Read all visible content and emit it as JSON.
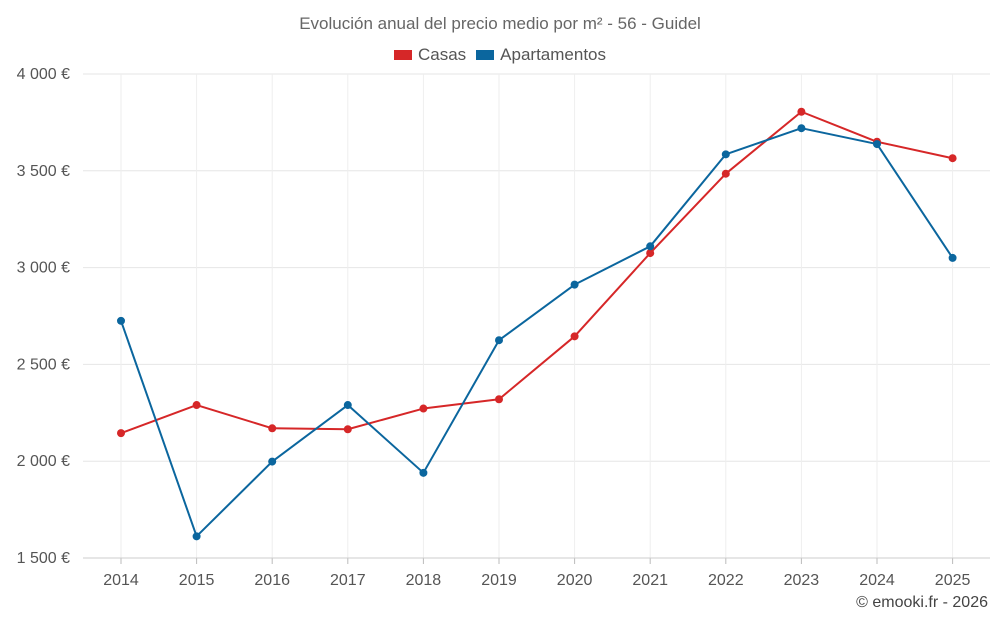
{
  "chart_data": {
    "type": "line",
    "title": "Evolución anual del precio medio por m² - 56 - Guidel",
    "categories": [
      "2014",
      "2015",
      "2016",
      "2017",
      "2018",
      "2019",
      "2020",
      "2021",
      "2022",
      "2023",
      "2024",
      "2025"
    ],
    "series": [
      {
        "name": "Casas",
        "color": "#d62728",
        "values": [
          2145,
          2290,
          2170,
          2165,
          2272,
          2320,
          2645,
          3075,
          3485,
          3805,
          3650,
          3565
        ]
      },
      {
        "name": "Apartamentos",
        "color": "#0b669e",
        "values": [
          2725,
          1612,
          1998,
          2290,
          1940,
          2625,
          2912,
          3110,
          3585,
          3720,
          3638,
          3050
        ]
      }
    ],
    "ylim": [
      1500,
      4000
    ],
    "yticks": [
      1500,
      2000,
      2500,
      3000,
      3500,
      4000
    ],
    "ytick_labels": [
      "1 500 €",
      "2 000 €",
      "2 500 €",
      "3 000 €",
      "3 500 €",
      "4 000 €"
    ],
    "xlabel": "",
    "ylabel": "",
    "grid": true,
    "legend_position": "top-center"
  },
  "copyright": "© emooki.fr - 2026"
}
